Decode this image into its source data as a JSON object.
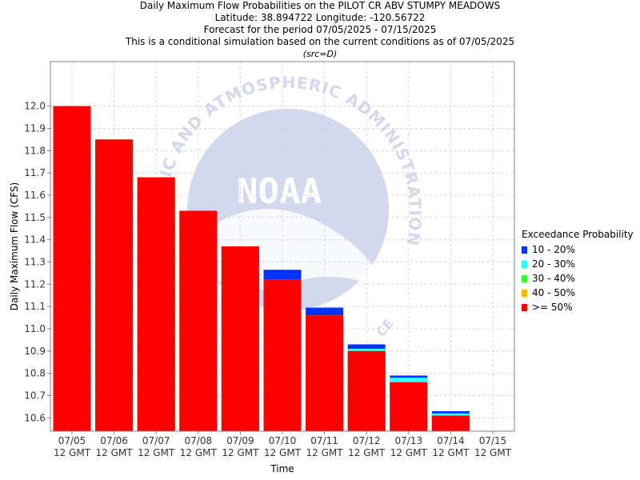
{
  "title": {
    "line1": "Daily Maximum Flow Probabilities on the PILOT CR ABV STUMPY MEADOWS",
    "line2": "Latitude: 38.894722 Longitude: -120.56722",
    "line3": "Forecast for the period 07/05/2025 - 07/15/2025",
    "line4": "This is a conditional simulation based on the current conditions as of 07/05/2025",
    "src": "(src=D)"
  },
  "watermark": {
    "arc_text": "NIC AND ATMOSPHERIC ADMINISTRATION",
    "logo_text": "NOAA",
    "bottom_text": "CE",
    "color": "#d2d8ee"
  },
  "legend": {
    "title": "Exceedance Probability",
    "items": [
      {
        "label": "10 - 20%",
        "color": "#0033ff"
      },
      {
        "label": "20 - 30%",
        "color": "#33ffff"
      },
      {
        "label": "30 - 40%",
        "color": "#33ff33"
      },
      {
        "label": "40 - 50%",
        "color": "#ffbb00"
      },
      {
        "label": ">= 50%",
        "color": "#ff0000"
      }
    ]
  },
  "chart_data": {
    "type": "bar",
    "title": "Daily Maximum Flow Probabilities on the PILOT CR ABV STUMPY MEADOWS",
    "xlabel": "Time",
    "ylabel": "Daily Maximum Flow (CFS)",
    "ylim": [
      10.54,
      12.2
    ],
    "yticks": [
      10.6,
      10.7,
      10.8,
      10.9,
      11.0,
      11.1,
      11.2,
      11.3,
      11.4,
      11.5,
      11.6,
      11.7,
      11.8,
      11.9,
      12.0
    ],
    "ytick_labels": [
      "10.6",
      "10.7",
      "10.8",
      "10.9",
      "11.0",
      "11.1",
      "11.2",
      "11.3",
      "11.4",
      "11.5",
      "11.6",
      "11.7",
      "11.8",
      "11.9",
      "12.0"
    ],
    "grid": true,
    "legend_position": "right",
    "xtick_labels": [
      [
        "07/05",
        "12 GMT"
      ],
      [
        "07/06",
        "12 GMT"
      ],
      [
        "07/07",
        "12 GMT"
      ],
      [
        "07/08",
        "12 GMT"
      ],
      [
        "07/09",
        "12 GMT"
      ],
      [
        "07/10",
        "12 GMT"
      ],
      [
        "07/11",
        "12 GMT"
      ],
      [
        "07/12",
        "12 GMT"
      ],
      [
        "07/13",
        "12 GMT"
      ],
      [
        "07/14",
        "12 GMT"
      ],
      [
        "07/15",
        "12 GMT"
      ]
    ],
    "categories": [
      "07/05",
      "07/06",
      "07/07",
      "07/08",
      "07/09",
      "07/10",
      "07/11",
      "07/12",
      "07/13",
      "07/14"
    ],
    "series": [
      {
        "name": ">= 50%",
        "color": "#ff0000",
        "values": [
          12.0,
          11.85,
          11.68,
          11.53,
          11.37,
          11.22,
          11.06,
          10.9,
          10.76,
          10.61
        ]
      },
      {
        "name": "40 - 50%",
        "color": "#ffbb00",
        "values": [
          12.0,
          11.85,
          11.68,
          11.53,
          11.37,
          11.22,
          11.06,
          10.9,
          10.76,
          10.61
        ]
      },
      {
        "name": "30 - 40%",
        "color": "#33ff33",
        "values": [
          12.0,
          11.85,
          11.68,
          11.53,
          11.37,
          11.22,
          11.06,
          10.9,
          10.76,
          10.61
        ]
      },
      {
        "name": "20 - 30%",
        "color": "#33ffff",
        "values": [
          12.0,
          11.85,
          11.68,
          11.53,
          11.37,
          11.22,
          11.06,
          10.91,
          10.78,
          10.62
        ]
      },
      {
        "name": "10 - 20%",
        "color": "#0033ff",
        "values": [
          12.0,
          11.85,
          11.68,
          11.53,
          11.37,
          11.265,
          11.095,
          10.93,
          10.79,
          10.63
        ]
      }
    ]
  }
}
